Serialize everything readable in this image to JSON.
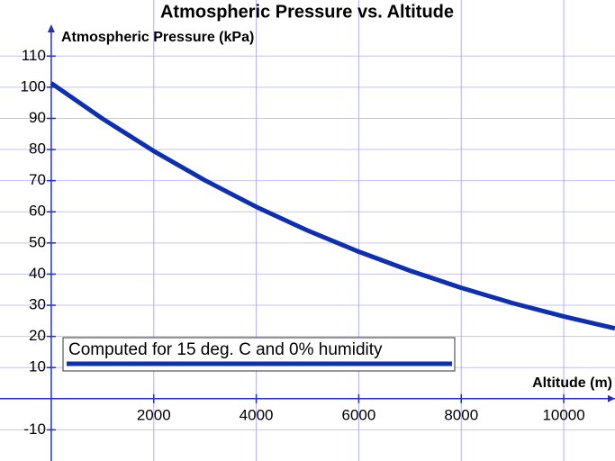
{
  "chart_data": {
    "type": "line",
    "title": "Atmospheric Pressure vs. Altitude",
    "x_label": "Altitude (m)",
    "y_label": "Atmospheric Pressure (kPa)",
    "x": [
      0,
      1000,
      2000,
      3000,
      4000,
      5000,
      6000,
      7000,
      8000,
      9000,
      10000,
      11000
    ],
    "series": [
      {
        "name": "Computed for 15 deg. C and 0% humidity",
        "color": "#0d2fb0",
        "values": [
          101.3,
          89.9,
          79.5,
          70.1,
          61.6,
          54.0,
          47.2,
          41.1,
          35.6,
          30.7,
          26.4,
          22.6
        ]
      }
    ],
    "xlim": [
      -1000,
      11000
    ],
    "ylim": [
      -20,
      128
    ],
    "xticks": [
      2000,
      4000,
      6000,
      8000,
      10000
    ],
    "yticks": [
      -10,
      10,
      20,
      30,
      40,
      50,
      60,
      70,
      80,
      90,
      100,
      110
    ],
    "grid": true,
    "legend": "lower left"
  }
}
